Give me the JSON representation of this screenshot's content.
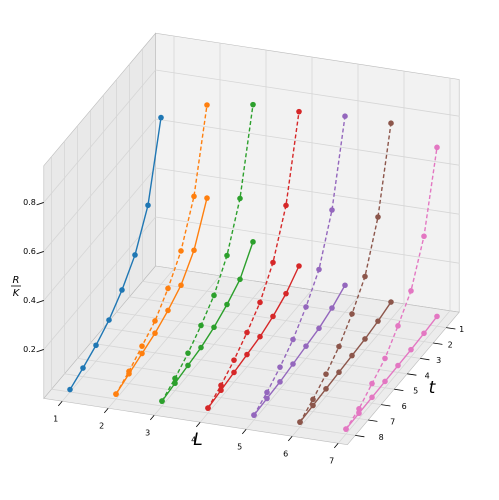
{
  "chart_data": {
    "type": "line3d",
    "xlabel": "L",
    "ylabel": "t",
    "zlabel": {
      "numerator": "R",
      "denominator": "K"
    },
    "xlim": [
      0.6,
      7.2
    ],
    "ylim": [
      0,
      8.6
    ],
    "zlim": [
      0,
      0.95
    ],
    "xticks": [
      1,
      2,
      3,
      4,
      5,
      6,
      7
    ],
    "yticks": [
      1,
      2,
      3,
      4,
      5,
      6,
      7,
      8
    ],
    "zticks": [
      0.2,
      0.4,
      0.6,
      0.8
    ],
    "grid": true,
    "y": [
      8,
      7,
      6,
      5,
      4,
      3,
      2,
      1
    ],
    "series": [
      {
        "x": 7,
        "color": "#e377c2",
        "linestyle": "dashed",
        "values": [
          0.02,
          0.04,
          0.08,
          0.12,
          0.19,
          0.27,
          0.43,
          0.73
        ]
      },
      {
        "x": 7,
        "color": "#e377c2",
        "linestyle": "solid",
        "values": [
          0.02,
          0.022,
          0.024,
          0.026,
          0.028,
          0.03,
          0.034,
          0.04
        ]
      },
      {
        "x": 6,
        "color": "#8c564b",
        "linestyle": "dashed",
        "values": [
          0.02,
          0.05,
          0.09,
          0.14,
          0.21,
          0.3,
          0.48,
          0.8
        ]
      },
      {
        "x": 6,
        "color": "#8c564b",
        "linestyle": "solid",
        "values": [
          0.02,
          0.025,
          0.03,
          0.035,
          0.04,
          0.045,
          0.055,
          0.07
        ]
      },
      {
        "x": 5,
        "color": "#9467bd",
        "linestyle": "dashed",
        "values": [
          0.02,
          0.05,
          0.09,
          0.14,
          0.21,
          0.3,
          0.48,
          0.8
        ]
      },
      {
        "x": 5,
        "color": "#9467bd",
        "linestyle": "solid",
        "values": [
          0.02,
          0.025,
          0.03,
          0.04,
          0.05,
          0.06,
          0.08,
          0.11
        ]
      },
      {
        "x": 4,
        "color": "#d62728",
        "linestyle": "dashed",
        "values": [
          0.02,
          0.05,
          0.09,
          0.14,
          0.2,
          0.3,
          0.47,
          0.79
        ]
      },
      {
        "x": 4,
        "color": "#d62728",
        "linestyle": "solid",
        "values": [
          0.02,
          0.03,
          0.04,
          0.05,
          0.06,
          0.08,
          0.11,
          0.16
        ]
      },
      {
        "x": 3,
        "color": "#2ca02c",
        "linestyle": "dashed",
        "values": [
          0.02,
          0.05,
          0.09,
          0.14,
          0.2,
          0.3,
          0.47,
          0.79
        ]
      },
      {
        "x": 3,
        "color": "#2ca02c",
        "linestyle": "solid",
        "values": [
          0.02,
          0.03,
          0.04,
          0.05,
          0.07,
          0.1,
          0.14,
          0.23
        ]
      },
      {
        "x": 2,
        "color": "#ff7f0e",
        "linestyle": "dashed",
        "values": [
          0.02,
          0.05,
          0.09,
          0.13,
          0.2,
          0.29,
          0.45,
          0.76
        ]
      },
      {
        "x": 2,
        "color": "#ff7f0e",
        "linestyle": "solid",
        "values": [
          0.02,
          0.04,
          0.06,
          0.08,
          0.11,
          0.15,
          0.23,
          0.38
        ]
      },
      {
        "x": 1,
        "color": "#1f77b4",
        "linestyle": "solid",
        "values": [
          0.01,
          0.035,
          0.065,
          0.105,
          0.165,
          0.245,
          0.385,
          0.68
        ]
      }
    ]
  }
}
